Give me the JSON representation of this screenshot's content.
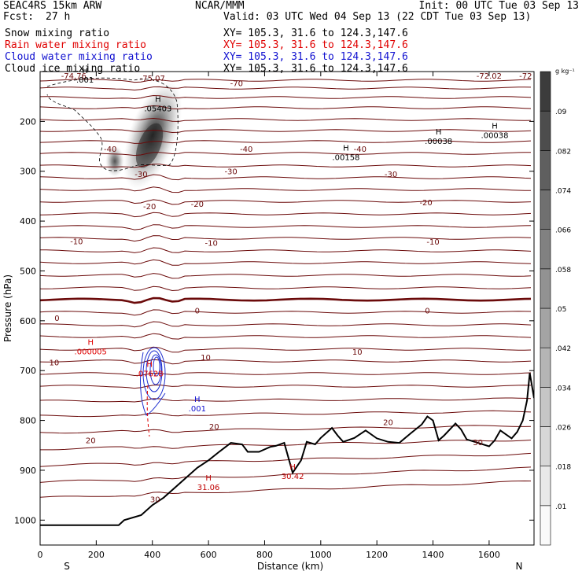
{
  "header": {
    "model": "SEAC4RS 15km ARW",
    "org": "NCAR/MMM",
    "init": "Init: 00 UTC Tue 03 Sep 13",
    "fcst_label": "Fcst:",
    "fcst_value": "27 h",
    "valid": "Valid: 03 UTC Wed 04 Sep 13 (22 CDT Tue 03 Sep 13)",
    "fields": [
      {
        "label": "Snow mixing ratio",
        "xy": "XY= 105.3, 31.6 to 124.3,147.6",
        "color": "#000000"
      },
      {
        "label": "Rain water mixing ratio",
        "xy": "XY= 105.3, 31.6 to 124.3,147.6",
        "color": "#e00000"
      },
      {
        "label": "Cloud water mixing ratio",
        "xy": "XY= 105.3, 31.6 to 124.3,147.6",
        "color": "#1010d0"
      },
      {
        "label": "Cloud ice mixing ratio",
        "xy": "XY= 105.3, 31.6 to 124.3,147.6",
        "color": "#000000"
      }
    ]
  },
  "chart_data": {
    "type": "contour",
    "xlabel": "Distance (km)",
    "ylabel": "Pressure (hPa)",
    "xlim": [
      0,
      1760
    ],
    "ylim": [
      1050,
      100
    ],
    "x_ticks": [
      0,
      200,
      400,
      600,
      800,
      1000,
      1200,
      1400,
      1600
    ],
    "y_ticks": [
      200,
      300,
      400,
      500,
      600,
      700,
      800,
      900,
      1000
    ],
    "x_endpoints": {
      "left": "S",
      "right": "N"
    },
    "colorbar": {
      "unit": "g kg⁻¹",
      "levels": [
        ".01",
        ".018",
        ".026",
        ".034",
        ".042",
        ".05",
        ".058",
        ".066",
        ".074",
        ".082",
        ".09"
      ]
    },
    "temperature_isotherms": [
      {
        "label": "-70",
        "x": 700,
        "p": 123
      },
      {
        "label": "-72.02",
        "x": 1600,
        "p": 108
      },
      {
        "label": "-72",
        "x": 1730,
        "p": 108
      },
      {
        "label": "-74.76",
        "x": 120,
        "p": 108
      },
      {
        "label": "-75.07",
        "x": 400,
        "p": 113
      },
      {
        "label": "-40",
        "x": 250,
        "p": 255
      },
      {
        "label": "-40",
        "x": 735,
        "p": 255
      },
      {
        "label": "-40",
        "x": 1140,
        "p": 255
      },
      {
        "label": "-30",
        "x": 360,
        "p": 305
      },
      {
        "label": "-30",
        "x": 680,
        "p": 300
      },
      {
        "label": "-30",
        "x": 1250,
        "p": 305
      },
      {
        "label": "-20",
        "x": 390,
        "p": 370
      },
      {
        "label": "-20",
        "x": 560,
        "p": 365
      },
      {
        "label": "-20",
        "x": 1375,
        "p": 362
      },
      {
        "label": "-10",
        "x": 130,
        "p": 440
      },
      {
        "label": "-10",
        "x": 610,
        "p": 443
      },
      {
        "label": "-10",
        "x": 1400,
        "p": 441
      },
      {
        "label": "0",
        "x": 60,
        "p": 594
      },
      {
        "label": "0",
        "x": 560,
        "p": 579
      },
      {
        "label": "0",
        "x": 1380,
        "p": 579
      },
      {
        "label": "10",
        "x": 50,
        "p": 683
      },
      {
        "label": "10",
        "x": 590,
        "p": 673
      },
      {
        "label": "10",
        "x": 1130,
        "p": 662
      },
      {
        "label": "20",
        "x": 180,
        "p": 839
      },
      {
        "label": "20",
        "x": 620,
        "p": 812
      },
      {
        "label": "20",
        "x": 1240,
        "p": 803
      },
      {
        "label": "30",
        "x": 410,
        "p": 958
      },
      {
        "label": "30",
        "x": 1560,
        "p": 843
      }
    ],
    "maxima": [
      {
        "label": ".05403",
        "x": 420,
        "p": 170,
        "color": "#000000"
      },
      {
        "label": ".00158",
        "x": 1090,
        "p": 268,
        "color": "#000000"
      },
      {
        "label": ".00038",
        "x": 1420,
        "p": 236,
        "color": "#000000"
      },
      {
        "label": ".00038",
        "x": 1620,
        "p": 224,
        "color": "#000000"
      },
      {
        "label": ".001",
        "x": 160,
        "p": 113,
        "color": "#000000"
      },
      {
        "label": ".000005",
        "x": 180,
        "p": 658,
        "color": "#e00000"
      },
      {
        "label": ".07628",
        "x": 390,
        "p": 702,
        "color": "#e00000"
      },
      {
        "label": ".001",
        "x": 560,
        "p": 772,
        "color": "#1010d0"
      },
      {
        "label": "31.06",
        "x": 600,
        "p": 930,
        "color": "#c00000"
      },
      {
        "label": "30.42",
        "x": 900,
        "p": 908,
        "color": "#c00000"
      }
    ],
    "terrain_p": [
      [
        0,
        1010
      ],
      [
        280,
        1010
      ],
      [
        300,
        1000
      ],
      [
        360,
        990
      ],
      [
        400,
        970
      ],
      [
        440,
        955
      ],
      [
        480,
        935
      ],
      [
        520,
        915
      ],
      [
        560,
        895
      ],
      [
        600,
        880
      ],
      [
        640,
        862
      ],
      [
        680,
        845
      ],
      [
        720,
        848
      ],
      [
        740,
        863
      ],
      [
        780,
        863
      ],
      [
        820,
        853
      ],
      [
        840,
        851
      ],
      [
        870,
        845
      ],
      [
        900,
        905
      ],
      [
        930,
        880
      ],
      [
        950,
        843
      ],
      [
        980,
        848
      ],
      [
        1000,
        835
      ],
      [
        1040,
        815
      ],
      [
        1060,
        830
      ],
      [
        1080,
        843
      ],
      [
        1120,
        835
      ],
      [
        1160,
        820
      ],
      [
        1200,
        836
      ],
      [
        1240,
        843
      ],
      [
        1280,
        845
      ],
      [
        1320,
        826
      ],
      [
        1360,
        808
      ],
      [
        1380,
        792
      ],
      [
        1400,
        800
      ],
      [
        1420,
        840
      ],
      [
        1440,
        830
      ],
      [
        1480,
        806
      ],
      [
        1500,
        818
      ],
      [
        1520,
        838
      ],
      [
        1560,
        845
      ],
      [
        1600,
        852
      ],
      [
        1620,
        840
      ],
      [
        1640,
        820
      ],
      [
        1680,
        836
      ],
      [
        1700,
        823
      ],
      [
        1720,
        800
      ],
      [
        1735,
        760
      ],
      [
        1745,
        705
      ],
      [
        1760,
        755
      ]
    ]
  }
}
